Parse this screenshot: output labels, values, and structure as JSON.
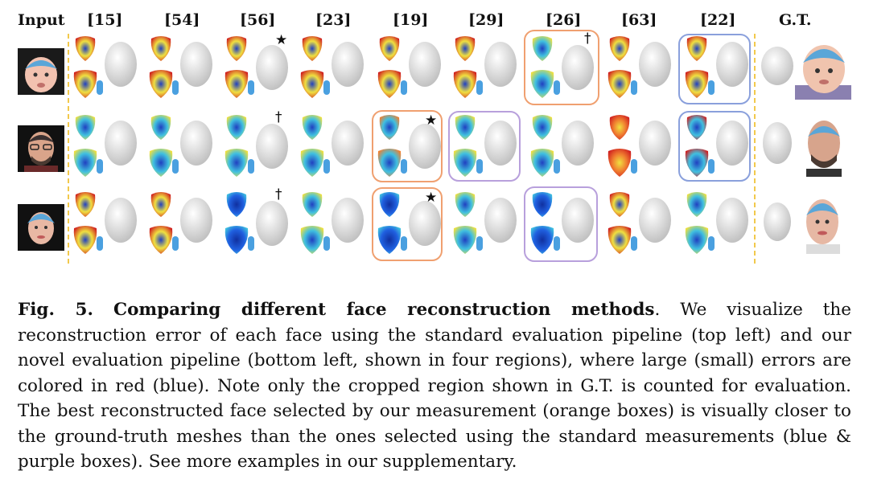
{
  "figure": {
    "headers": {
      "input": "Input",
      "methods": [
        "[15]",
        "[54]",
        "[56]",
        "[23]",
        "[19]",
        "[29]",
        "[26]",
        "[63]",
        "[22]"
      ],
      "gt": "G.T."
    },
    "marks": {
      "star": "★",
      "dagger": "†"
    },
    "rows": [
      {
        "subject": "infant",
        "selected_boxes": [
          {
            "method": "[26]",
            "color": "orange"
          },
          {
            "method": "[22]",
            "color": "blue"
          }
        ],
        "marks": [
          {
            "method": "[56]",
            "symbol": "★"
          },
          {
            "method": "[26]",
            "symbol": "†"
          }
        ]
      },
      {
        "subject": "bearded man",
        "selected_boxes": [
          {
            "method": "[19]",
            "color": "orange"
          },
          {
            "method": "[29]",
            "color": "purple"
          },
          {
            "method": "[22]",
            "color": "blue"
          }
        ],
        "marks": [
          {
            "method": "[56]",
            "symbol": "†"
          },
          {
            "method": "[19]",
            "symbol": "★"
          }
        ]
      },
      {
        "subject": "woman",
        "selected_boxes": [
          {
            "method": "[19]",
            "color": "orange"
          },
          {
            "method": "[26]",
            "color": "purple"
          }
        ],
        "marks": [
          {
            "method": "[56]",
            "symbol": "†"
          },
          {
            "method": "[19]",
            "symbol": "★"
          }
        ]
      }
    ],
    "colors": {
      "orange_box": "#f0a070",
      "purple_box": "#b8a0dc",
      "blue_box": "#8aa0dc",
      "divider": "#f2c94c"
    }
  },
  "caption": {
    "label": "Fig. 5.",
    "title": "Comparing different face reconstruction methods",
    "body": ". We visualize the reconstruction error of each face using the standard evaluation pipeline (top left) and our novel evaluation pipeline (bottom left, shown in four regions), where large (small) errors are colored in red (blue). Note only the cropped region shown in G.T. is counted for evaluation. The best reconstructed face selected by our measurement (orange boxes) is visually closer to the ground-truth meshes than the ones selected using the standard measurements (blue & purple boxes). See more examples in our supplementary."
  }
}
